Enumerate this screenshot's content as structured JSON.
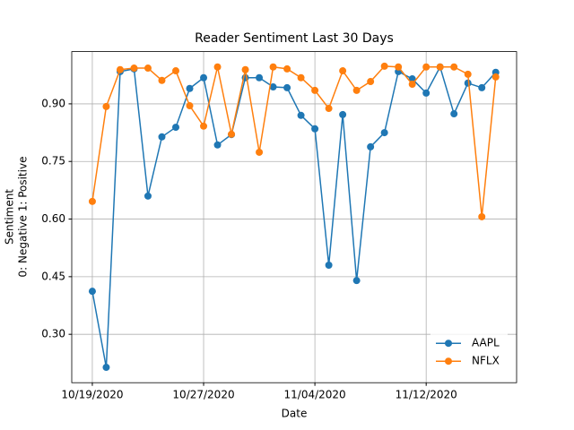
{
  "chart_data": {
    "type": "line",
    "title": "Reader Sentiment Last 30 Days",
    "xlabel": "Date",
    "ylabel": [
      "Sentiment",
      "0: Negative 1: Positive"
    ],
    "x": [
      "2020-10-19",
      "2020-10-20",
      "2020-10-21",
      "2020-10-22",
      "2020-10-23",
      "2020-10-24",
      "2020-10-25",
      "2020-10-26",
      "2020-10-27",
      "2020-10-28",
      "2020-10-29",
      "2020-10-30",
      "2020-10-31",
      "2020-11-01",
      "2020-11-02",
      "2020-11-03",
      "2020-11-04",
      "2020-11-05",
      "2020-11-06",
      "2020-11-07",
      "2020-11-08",
      "2020-11-09",
      "2020-11-10",
      "2020-11-11",
      "2020-11-12",
      "2020-11-13",
      "2020-11-14",
      "2020-11-15",
      "2020-11-16",
      "2020-11-17"
    ],
    "series": [
      {
        "name": "AAPL",
        "color": "#1f77b4",
        "values": [
          0.412,
          0.214,
          0.984,
          0.991,
          0.66,
          0.814,
          0.839,
          0.94,
          0.968,
          0.793,
          0.82,
          0.968,
          0.968,
          0.944,
          0.942,
          0.87,
          0.835,
          0.48,
          0.872,
          0.44,
          0.788,
          0.825,
          0.984,
          0.965,
          0.928,
          0.996,
          0.874,
          0.954,
          0.942,
          0.982
        ]
      },
      {
        "name": "NFLX",
        "color": "#ff7f0e",
        "values": [
          0.646,
          0.893,
          0.989,
          0.993,
          0.993,
          0.961,
          0.986,
          0.895,
          0.842,
          0.996,
          0.821,
          0.989,
          0.774,
          0.996,
          0.991,
          0.968,
          0.935,
          0.888,
          0.986,
          0.935,
          0.958,
          0.998,
          0.996,
          0.951,
          0.996,
          0.996,
          0.996,
          0.977,
          0.606,
          0.97
        ]
      }
    ],
    "xlim": [
      "2020-10-17T12:30",
      "2020-11-18T12:00"
    ],
    "xticks": [
      {
        "value": "2020-10-19",
        "label": "10/19/2020"
      },
      {
        "value": "2020-10-27",
        "label": "10/27/2020"
      },
      {
        "value": "2020-11-04",
        "label": "11/04/2020"
      },
      {
        "value": "2020-11-12",
        "label": "11/12/2020"
      }
    ],
    "ylim": [
      0.174,
      1.036
    ],
    "yticks": [
      {
        "value": 0.3,
        "label": "0.30"
      },
      {
        "value": 0.45,
        "label": "0.45"
      },
      {
        "value": 0.6,
        "label": "0.60"
      },
      {
        "value": 0.75,
        "label": "0.75"
      },
      {
        "value": 0.9,
        "label": "0.90"
      }
    ],
    "grid": true,
    "legend": "lower right"
  }
}
